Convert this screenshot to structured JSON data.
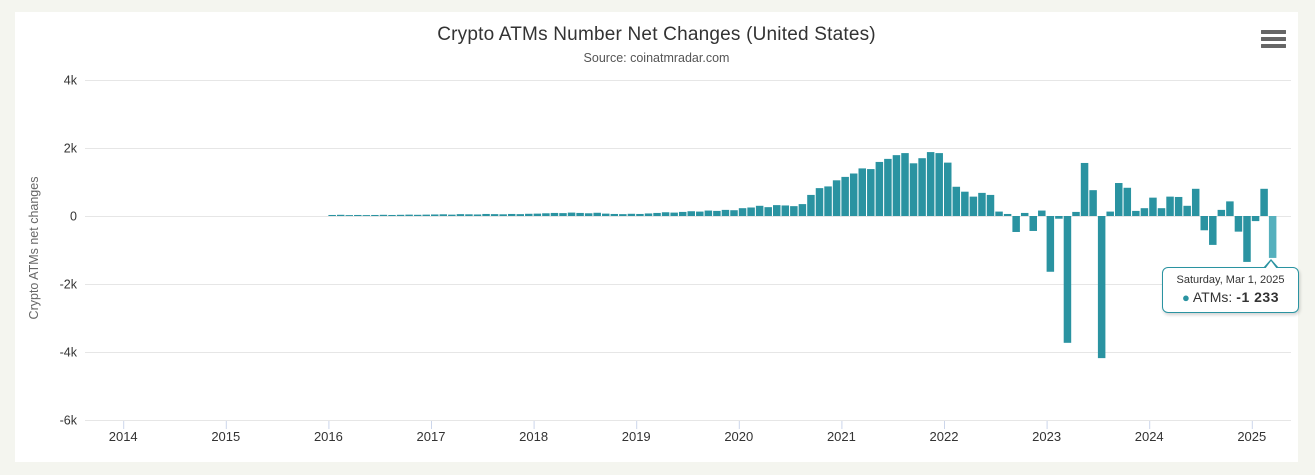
{
  "colors": {
    "background": "#f4f5ef",
    "panel": "#ffffff",
    "bar": "#2a93a1",
    "bar_hover": "#55b0bd",
    "grid": "#e6e6e6",
    "x_tick": "#ccd6eb",
    "axis_label_text": "#333333",
    "axis_title_text": "#666666",
    "title_text": "#333333",
    "subtitle_text": "#555555",
    "menu_icon": "#666666"
  },
  "tooltip": {
    "date": "Saturday, Mar 1, 2025",
    "marker": "●",
    "label": "ATMs:",
    "value": "-1 233"
  },
  "chart_data": {
    "type": "bar",
    "title": "Crypto ATMs Number Net Changes (United States)",
    "subtitle": "Source: coinatmradar.com",
    "xlabel": "",
    "ylabel": "Crypto ATMs net changes",
    "legend": "none",
    "grid": "horizontal",
    "ylim": [
      -6000,
      4000
    ],
    "x_tick_years": [
      "2014",
      "2015",
      "2016",
      "2017",
      "2018",
      "2019",
      "2020",
      "2021",
      "2022",
      "2023",
      "2024",
      "2025"
    ],
    "y_ticks": [
      {
        "label": "4k",
        "value": 4000
      },
      {
        "label": "2k",
        "value": 2000
      },
      {
        "label": "0",
        "value": 0
      },
      {
        "label": "-2k",
        "value": -2000
      },
      {
        "label": "-4k",
        "value": -4000
      },
      {
        "label": "-6k",
        "value": -6000
      }
    ],
    "series_name": "ATMs",
    "start_month": "2016-01",
    "values": [
      30,
      35,
      25,
      30,
      25,
      30,
      35,
      30,
      35,
      40,
      35,
      40,
      45,
      50,
      40,
      55,
      50,
      45,
      60,
      55,
      50,
      60,
      55,
      65,
      70,
      80,
      90,
      85,
      100,
      90,
      80,
      95,
      70,
      60,
      55,
      65,
      60,
      75,
      90,
      110,
      100,
      120,
      140,
      130,
      160,
      150,
      180,
      170,
      230,
      250,
      300,
      260,
      320,
      310,
      290,
      350,
      620,
      820,
      870,
      1050,
      1150,
      1250,
      1400,
      1380,
      1590,
      1680,
      1790,
      1850,
      1550,
      1700,
      1880,
      1850,
      1570,
      860,
      715,
      570,
      680,
      620,
      130,
      60,
      -470,
      90,
      -440,
      160,
      -1640,
      -80,
      -3730,
      120,
      1560,
      760,
      -4180,
      130,
      970,
      830,
      150,
      230,
      540,
      230,
      570,
      560,
      300,
      800,
      -420,
      -850,
      180,
      430,
      -460,
      -1350,
      -150,
      800,
      -1233
    ],
    "hover_index": 110,
    "hovered_point": {
      "month": "2025-03",
      "value": -1233
    }
  }
}
